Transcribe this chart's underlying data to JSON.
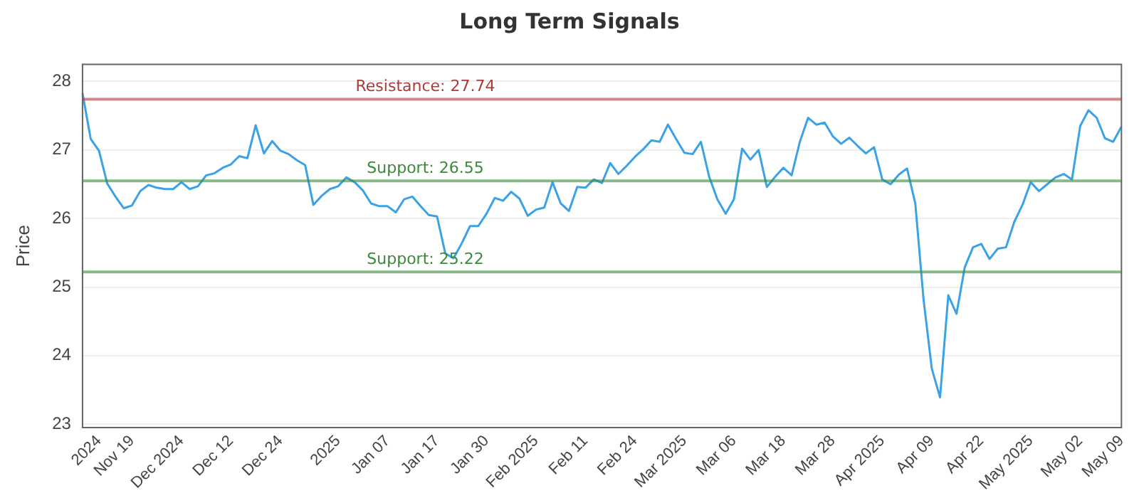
{
  "chart_data": {
    "type": "line",
    "title": "Long Term Signals",
    "ylabel": "Price",
    "categories": [
      null,
      null,
      "2024",
      null,
      null,
      null,
      "Nov 19",
      null,
      null,
      null,
      null,
      null,
      "Dec 2024",
      null,
      null,
      null,
      null,
      null,
      "Dec 12",
      null,
      null,
      null,
      null,
      null,
      "Dec 24",
      null,
      null,
      null,
      null,
      null,
      null,
      "2025",
      null,
      null,
      null,
      null,
      null,
      "Jan 07",
      null,
      null,
      null,
      null,
      null,
      "Jan 17",
      null,
      null,
      null,
      null,
      null,
      "Jan 30",
      null,
      null,
      null,
      null,
      null,
      "Feb 2025",
      null,
      null,
      null,
      null,
      null,
      "Feb 11",
      null,
      null,
      null,
      null,
      null,
      "Feb 24",
      null,
      null,
      null,
      null,
      null,
      "Mar 2025",
      null,
      null,
      null,
      null,
      null,
      "Mar 06",
      null,
      null,
      null,
      null,
      null,
      "Mar 18",
      null,
      null,
      null,
      null,
      null,
      "Mar 28",
      null,
      null,
      null,
      null,
      null,
      "Apr 2025",
      null,
      null,
      null,
      null,
      null,
      "Apr 09",
      null,
      null,
      null,
      null,
      null,
      "Apr 22",
      null,
      null,
      null,
      null,
      null,
      "May 2025",
      null,
      null,
      null,
      null,
      null,
      "May 02",
      null,
      null,
      null,
      null,
      "May 09"
    ],
    "series": [
      {
        "color": "#3ba2e6",
        "values": [
          27.83,
          27.16,
          26.99,
          26.51,
          26.32,
          26.15,
          26.19,
          26.4,
          26.49,
          26.45,
          26.43,
          26.43,
          26.53,
          26.43,
          26.47,
          26.63,
          26.66,
          26.74,
          26.79,
          26.91,
          26.88,
          27.36,
          26.95,
          27.13,
          26.99,
          26.94,
          26.85,
          26.78,
          26.2,
          26.33,
          26.43,
          26.47,
          26.6,
          26.53,
          26.41,
          26.22,
          26.18,
          26.18,
          26.09,
          26.28,
          26.32,
          26.18,
          26.05,
          26.03,
          25.49,
          25.42,
          25.64,
          25.89,
          25.89,
          26.07,
          26.3,
          26.26,
          26.39,
          26.29,
          26.04,
          26.13,
          26.16,
          26.53,
          26.22,
          26.11,
          26.46,
          26.45,
          26.57,
          26.52,
          26.81,
          26.65,
          26.77,
          26.9,
          27.01,
          27.14,
          27.12,
          27.37,
          27.16,
          26.96,
          26.94,
          27.12,
          26.61,
          26.28,
          26.07,
          26.28,
          27.02,
          26.86,
          27.0,
          26.46,
          26.61,
          26.74,
          26.63,
          27.12,
          27.47,
          27.37,
          27.4,
          27.2,
          27.09,
          27.18,
          27.06,
          26.95,
          27.04,
          26.57,
          26.5,
          26.64,
          26.73,
          26.22,
          24.82,
          23.81,
          23.39,
          24.88,
          24.61,
          25.29,
          25.58,
          25.63,
          25.41,
          25.56,
          25.58,
          25.95,
          26.2,
          26.53,
          26.4,
          26.5,
          26.6,
          26.65,
          26.57,
          27.35,
          27.58,
          27.47,
          27.17,
          27.12,
          27.34
        ]
      }
    ],
    "ylim": [
      22.95,
      28.25
    ],
    "yticks": [
      23,
      24,
      25,
      26,
      27,
      28
    ],
    "grid": "y",
    "marker": "none",
    "line_style": "solid",
    "ref_lines": [
      {
        "axis": "y",
        "value": 27.74,
        "label": "Resistance: 27.74",
        "color": "#b03a3a"
      },
      {
        "axis": "y",
        "value": 26.55,
        "label": "Support: 26.55",
        "color": "#3a8a3a"
      },
      {
        "axis": "y",
        "value": 25.22,
        "label": "Support: 25.22",
        "color": "#3a8a3a"
      }
    ]
  }
}
